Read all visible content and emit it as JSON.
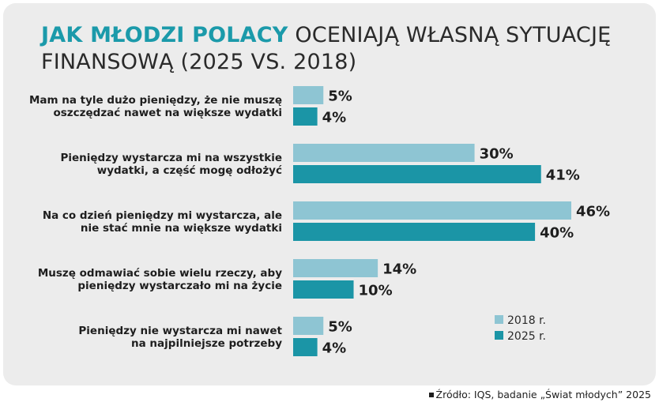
{
  "title": {
    "accent": "JAK MŁODZI POLACY",
    "rest": "OCENIAJĄ WŁASNĄ SYTUACJĘ FINANSOWĄ (2025 VS. 2018)"
  },
  "source": "Źródło: IQS, badanie „Świat młodych” 2025",
  "colors": {
    "series_2018": "#8ec5d3",
    "series_2025": "#1b95a6",
    "accent": "#1b9aaa",
    "panel": "#ececec"
  },
  "chart_data": {
    "type": "bar",
    "orientation": "horizontal",
    "unit": "%",
    "categories": [
      [
        "Mam na tyle dużo pieniędzy, że nie muszę",
        "oszczędzać nawet na większe wydatki"
      ],
      [
        "Pieniędzy wystarcza mi na wszystkie",
        "wydatki, a część mogę odłożyć"
      ],
      [
        "Na co dzień pieniędzy mi wystarcza, ale",
        "nie stać mnie na większe wydatki"
      ],
      [
        "Muszę odmawiać sobie wielu rzeczy, aby",
        "pieniędzy wystarczało mi na życie"
      ],
      [
        "Pieniędzy nie wystarcza mi nawet",
        "na najpilniejsze potrzeby"
      ]
    ],
    "series": [
      {
        "name": "2018 r.",
        "values": [
          5,
          30,
          46,
          14,
          5
        ]
      },
      {
        "name": "2025 r.",
        "values": [
          4,
          41,
          40,
          10,
          4
        ]
      }
    ],
    "xlim": [
      0,
      46
    ],
    "legend_position": "bottom-right"
  }
}
